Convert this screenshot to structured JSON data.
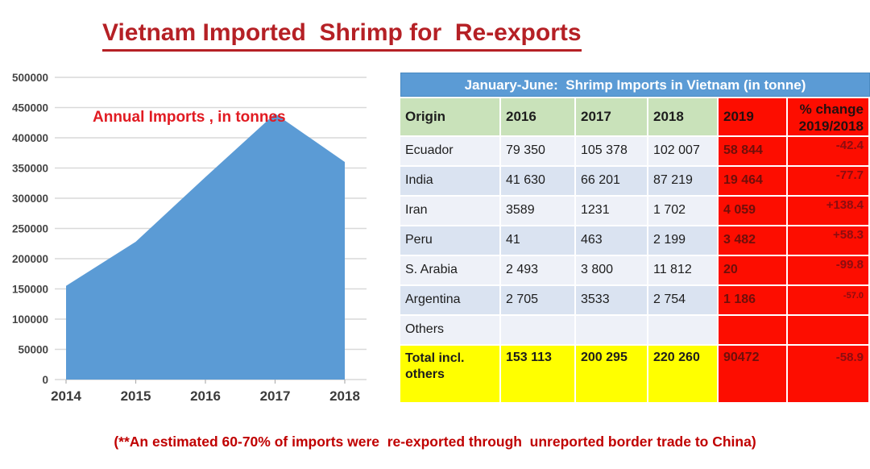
{
  "title": "Vietnam Imported  Shrimp for  Re-exports",
  "footnote": "(**An estimated 60-70% of imports were  re-exported through  unreported border trade to China)",
  "colors": {
    "title_red": "#b52025",
    "accent_blue": "#5b9bd5",
    "header_green": "#c9e2ba",
    "alert_red": "#fd0d00",
    "total_yellow": "#ffff00",
    "row_light": "#eef1f8",
    "row_blue": "#dae3f1",
    "area_blue": "#5b9bd5"
  },
  "chart_data": {
    "type": "area",
    "title": "Annual Imports , in tonnes",
    "x": [
      "2014",
      "2015",
      "2016",
      "2017",
      "2018"
    ],
    "values": [
      155000,
      228000,
      335000,
      440000,
      360000
    ],
    "xlabel": "",
    "ylabel": "",
    "ylim": [
      0,
      500000
    ],
    "ytick_step": 50000,
    "grid": true,
    "legend": "none",
    "area_color": "#5b9bd5"
  },
  "table": {
    "title": "January-June:  Shrimp Imports in Vietnam (in tonne)",
    "headers": {
      "origin": "Origin",
      "y2016": "2016",
      "y2017": "2017",
      "y2018": "2018",
      "y2019": "2019",
      "change_line1": "% change",
      "change_line2": "2019/2018"
    },
    "rows": [
      {
        "origin": "Ecuador",
        "y2016": "79 350",
        "y2017": "105 378",
        "y2018": "102 007",
        "y2019": "58 844",
        "change": "-42.4"
      },
      {
        "origin": "India",
        "y2016": "41 630",
        "y2017": "66 201",
        "y2018": "87 219",
        "y2019": "19 464",
        "change": "-77.7"
      },
      {
        "origin": "Iran",
        "y2016": "3589",
        "y2017": "1231",
        "y2018": "1 702",
        "y2019": "4 059",
        "change": "+138.4"
      },
      {
        "origin": "Peru",
        "y2016": "41",
        "y2017": "463",
        "y2018": "2 199",
        "y2019": "3 482",
        "change": "+58.3"
      },
      {
        "origin": "S. Arabia",
        "y2016": "2 493",
        "y2017": "3 800",
        "y2018": "11 812",
        "y2019": "20",
        "change": "-99.8"
      },
      {
        "origin": "Argentina",
        "y2016": "2 705",
        "y2017": "3533",
        "y2018": "2 754",
        "y2019": "1 186",
        "change": "-57.0"
      },
      {
        "origin": "Others",
        "y2016": "",
        "y2017": "",
        "y2018": "",
        "y2019": "",
        "change": ""
      }
    ],
    "total": {
      "origin": "Total incl. others",
      "y2016": "153 113",
      "y2017": "200 295",
      "y2018": "220 260",
      "y2019": "90472",
      "change": "-58.9"
    }
  }
}
